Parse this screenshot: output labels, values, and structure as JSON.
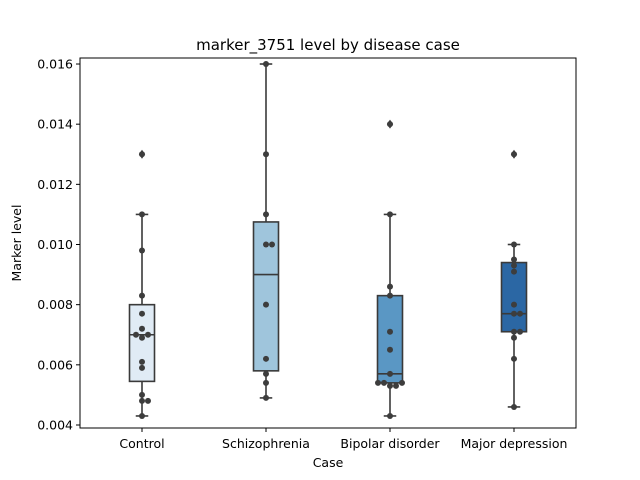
{
  "chart_data": {
    "type": "box",
    "title": "marker_3751 level by disease case",
    "xlabel": "Case",
    "ylabel": "Marker level",
    "ylim": [
      0.0039,
      0.0162
    ],
    "yticks": [
      0.004,
      0.006,
      0.008,
      0.01,
      0.012,
      0.014,
      0.016
    ],
    "ytick_labels": [
      "0.004",
      "0.006",
      "0.008",
      "0.010",
      "0.012",
      "0.014",
      "0.016"
    ],
    "categories": [
      "Control",
      "Schizophrenia",
      "Bipolar disorder",
      "Major depression"
    ],
    "boxes": [
      {
        "category": "Control",
        "color": "#e0ebf5",
        "q1": 0.00545,
        "median": 0.007,
        "q3": 0.008,
        "whisker_low": 0.0043,
        "whisker_high": 0.011,
        "outliers": [
          0.013
        ],
        "points": [
          0.0043,
          0.0048,
          0.0048,
          0.005,
          0.0059,
          0.0061,
          0.0069,
          0.007,
          0.007,
          0.0072,
          0.0077,
          0.0083,
          0.0098,
          0.011,
          0.013
        ]
      },
      {
        "category": "Schizophrenia",
        "color": "#9fc5dc",
        "q1": 0.0058,
        "median": 0.009,
        "q3": 0.01075,
        "whisker_low": 0.0049,
        "whisker_high": 0.016,
        "outliers": [],
        "points": [
          0.0049,
          0.0054,
          0.0057,
          0.0062,
          0.008,
          0.01,
          0.01,
          0.011,
          0.013,
          0.016
        ]
      },
      {
        "category": "Bipolar disorder",
        "color": "#5a97c4",
        "q1": 0.0054,
        "median": 0.0057,
        "q3": 0.0083,
        "whisker_low": 0.0043,
        "whisker_high": 0.011,
        "outliers": [
          0.014
        ],
        "points": [
          0.0043,
          0.0053,
          0.0053,
          0.0054,
          0.0054,
          0.0054,
          0.0057,
          0.0065,
          0.0071,
          0.0083,
          0.0086,
          0.011,
          0.014
        ]
      },
      {
        "category": "Major depression",
        "color": "#2b67a4",
        "q1": 0.0071,
        "median": 0.0077,
        "q3": 0.0094,
        "whisker_low": 0.0046,
        "whisker_high": 0.01,
        "outliers": [
          0.013
        ],
        "points": [
          0.0046,
          0.0062,
          0.0069,
          0.0071,
          0.0071,
          0.0077,
          0.0077,
          0.008,
          0.0091,
          0.0093,
          0.0095,
          0.01,
          0.013
        ]
      }
    ],
    "grid": false,
    "legend": "none"
  }
}
